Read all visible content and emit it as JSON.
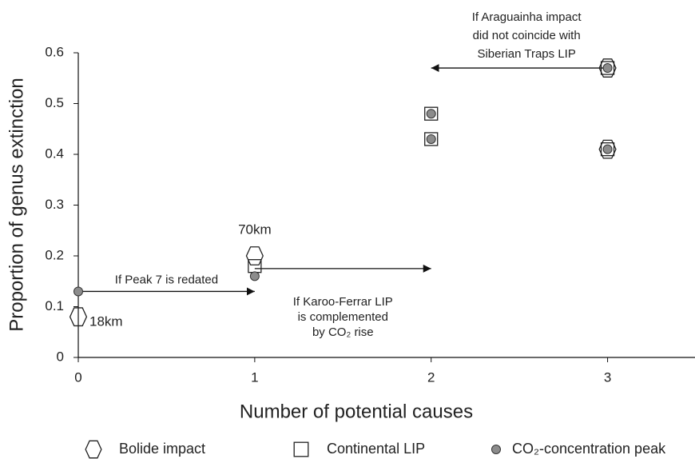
{
  "chart_data": {
    "type": "scatter",
    "x_label": "Number of potential causes",
    "y_label": "Proportion of genus extinction",
    "xlim": [
      0,
      3.5
    ],
    "ylim": [
      0,
      0.6
    ],
    "xticks": [
      0,
      1,
      2,
      3
    ],
    "yticks": [
      0,
      0.1,
      0.2,
      0.3,
      0.4,
      0.5,
      0.6
    ],
    "series": [
      {
        "name": "Bolide impact",
        "marker": "hexagon",
        "color": "#ffffff",
        "x": [
          0,
          1,
          3,
          3
        ],
        "values": [
          0.08,
          0.2,
          0.57,
          0.41
        ]
      },
      {
        "name": "Continental LIP",
        "marker": "square",
        "color": "#ffffff",
        "x": [
          1,
          2,
          2,
          3,
          3
        ],
        "values": [
          0.18,
          0.48,
          0.43,
          0.57,
          0.41
        ]
      },
      {
        "name": "CO₂-concentration peak",
        "marker": "circle",
        "color": "#8c8c8c",
        "x": [
          0,
          1,
          2,
          2,
          3,
          3
        ],
        "values": [
          0.13,
          0.16,
          0.48,
          0.43,
          0.57,
          0.41
        ]
      }
    ],
    "point_labels": [
      {
        "text": "70km",
        "x": 1,
        "y": 0.2
      },
      {
        "text": "18km",
        "x": 0,
        "y": 0.08
      }
    ],
    "arrows": [
      {
        "from": [
          0,
          0.13
        ],
        "to": [
          1,
          0.13
        ],
        "label": [
          "If Peak 7 is redated"
        ]
      },
      {
        "from": [
          1,
          0.175
        ],
        "to": [
          2,
          0.175
        ],
        "label": [
          "If Karoo-Ferrar LIP",
          "is complemented",
          "by CO₂ rise"
        ]
      },
      {
        "from": [
          3,
          0.57
        ],
        "to": [
          2,
          0.57
        ],
        "label": [
          "If Araguainha impact",
          "did not coincide with",
          "Siberian Traps LIP"
        ]
      }
    ]
  }
}
